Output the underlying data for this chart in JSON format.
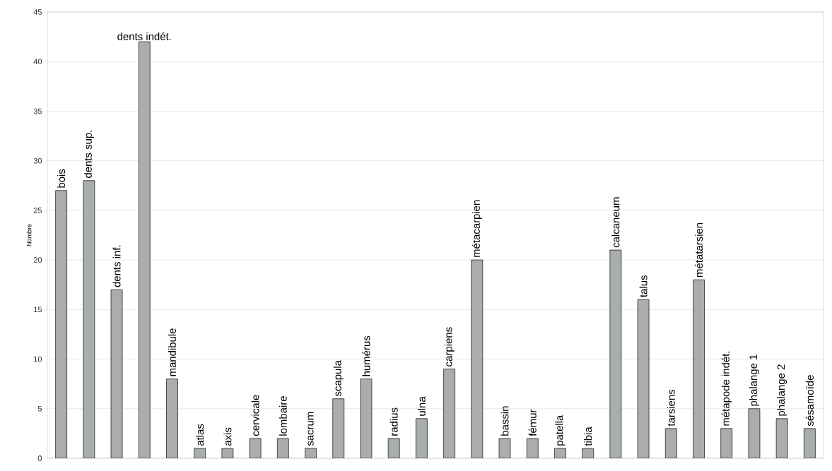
{
  "chart_data": {
    "type": "bar",
    "ylabel": "Nombre",
    "categories": [
      "bois",
      "dents sup.",
      "dents inf.",
      "dents indét.",
      "mandibule",
      "atlas",
      "axis",
      "cervicale",
      "lombaire",
      "sacrum",
      "scapula",
      "humérus",
      "radius",
      "ulna",
      "carpiens",
      "métacarpien",
      "bassin",
      "fémur",
      "patella",
      "tibia",
      "calcaneum",
      "talus",
      "tarsiens",
      "métatarsien",
      "métapode indét.",
      "phalange 1",
      "phalange 2",
      "sésamoïde"
    ],
    "values": [
      27,
      28,
      17,
      42,
      8,
      1,
      1,
      2,
      2,
      1,
      6,
      8,
      2,
      4,
      9,
      20,
      2,
      2,
      1,
      1,
      21,
      16,
      3,
      18,
      3,
      5,
      4,
      3
    ],
    "color": "#a9adac",
    "ylim": [
      0,
      45
    ],
    "yticks": [
      0,
      5,
      10,
      15,
      20,
      25,
      30,
      35,
      40,
      45
    ],
    "grid": "y"
  }
}
